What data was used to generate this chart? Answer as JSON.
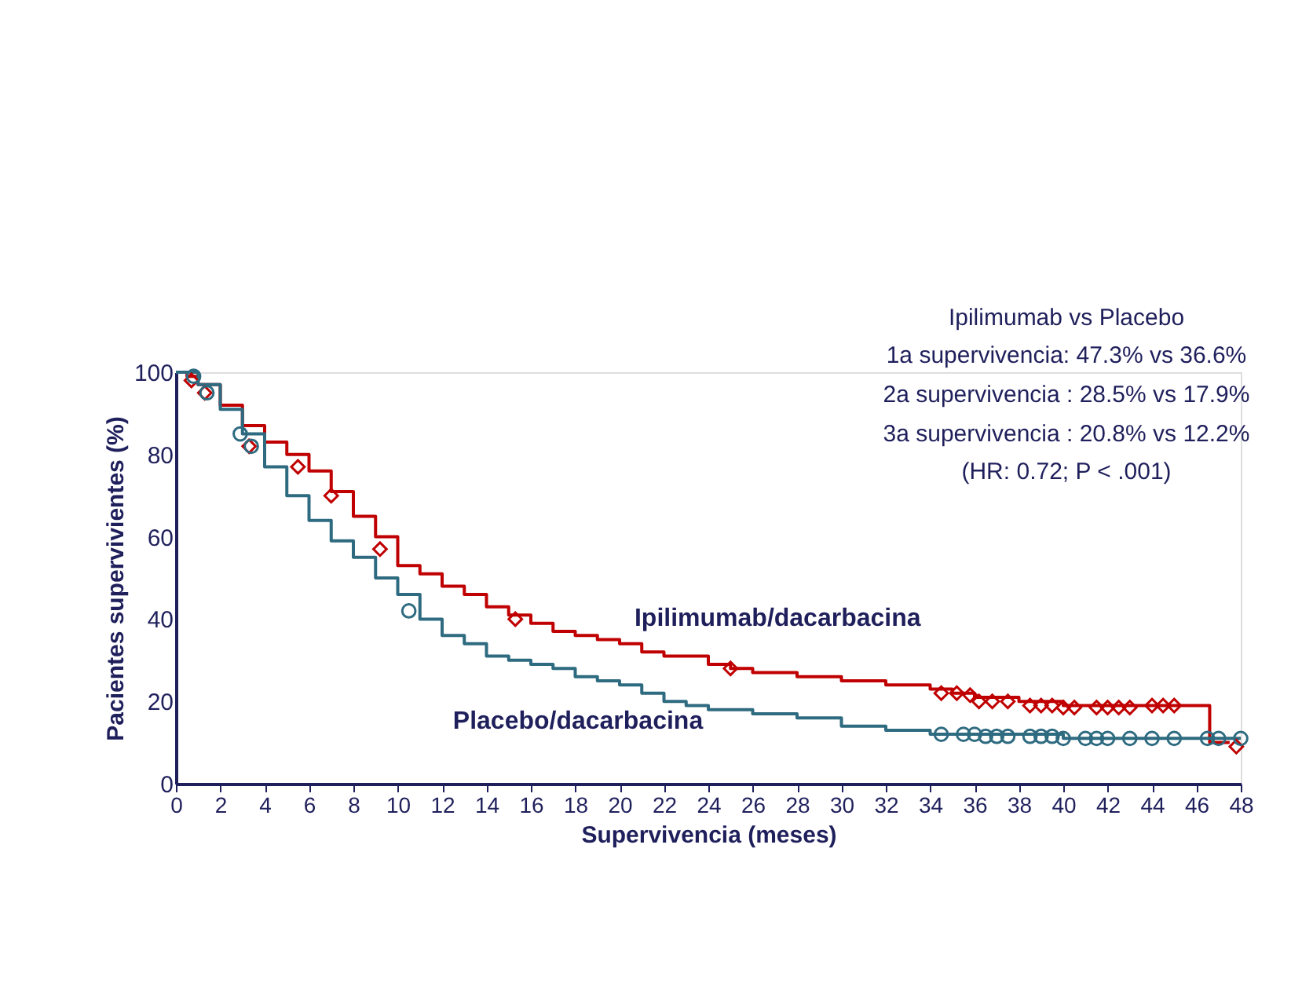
{
  "chart_data": {
    "type": "step",
    "xlabel": "Supervivencia (meses)",
    "ylabel": "Pacientes supervivientes (%)",
    "annotations": [
      "Ipilimumab vs Placebo",
      "1a supervivencia:  47.3% vs 36.6%",
      "2a supervivencia : 28.5% vs 17.9%",
      "3a supervivencia : 20.8% vs 12.2%",
      "(HR: 0.72; P < .001)"
    ],
    "xlim": [
      0,
      48
    ],
    "xticks": [
      0,
      2,
      4,
      6,
      8,
      10,
      12,
      14,
      16,
      18,
      20,
      22,
      24,
      26,
      28,
      30,
      32,
      34,
      36,
      38,
      40,
      42,
      44,
      46,
      48
    ],
    "ylim": [
      0,
      100
    ],
    "yticks": [
      0,
      20,
      40,
      60,
      80,
      100
    ],
    "grid": false,
    "legend": false,
    "series": [
      {
        "name": "Ipilimumab/dacarbacina",
        "color": "#c00000",
        "x": [
          0,
          0.5,
          1,
          2,
          3,
          4,
          5,
          6,
          7,
          8,
          9,
          10,
          11,
          12,
          13,
          14,
          15,
          16,
          17,
          18,
          19,
          20,
          21,
          22,
          24,
          25,
          26,
          28,
          30,
          32,
          34,
          35,
          36,
          38,
          40,
          46.6,
          47.5
        ],
        "values": [
          100,
          99,
          97,
          92,
          87,
          83,
          80,
          76,
          71,
          65,
          60,
          53,
          51,
          48,
          46,
          43,
          41,
          39,
          37,
          36,
          35,
          34,
          32,
          31,
          29,
          28,
          27,
          26,
          25,
          24,
          23,
          22,
          21,
          20,
          19,
          10,
          10
        ]
      },
      {
        "name": "Placebo/dacarbacina",
        "color": "#2e6b80",
        "x": [
          0,
          1,
          2,
          3,
          4,
          5,
          6,
          7,
          8,
          9,
          10,
          11,
          12,
          13,
          14,
          15,
          16,
          17,
          18,
          19,
          20,
          21,
          22,
          23,
          24,
          26,
          28,
          30,
          32,
          34,
          40,
          48
        ],
        "values": [
          100,
          97,
          91,
          85,
          77,
          70,
          64,
          59,
          55,
          50,
          46,
          40,
          36,
          34,
          31,
          30,
          29,
          28,
          26,
          25,
          24,
          22,
          20,
          19,
          18,
          17,
          16,
          14,
          13,
          12,
          11,
          11
        ]
      },
      {
        "type": "scatter",
        "marker": "diamond",
        "color": "#c00000",
        "x": [
          0.7,
          1.3,
          3.3,
          5.5,
          7,
          9.2,
          15.3,
          25,
          34.5,
          35.2,
          35.8,
          36.2,
          36.8,
          37.5,
          38.5,
          39,
          39.5,
          40,
          40.5,
          41.5,
          42,
          42.5,
          43,
          44,
          44.5,
          45,
          47.8
        ],
        "values": [
          98,
          95,
          82,
          77,
          70,
          57,
          40,
          28,
          22,
          22,
          21.5,
          20,
          20,
          20,
          19,
          19,
          19,
          18.5,
          18.5,
          18.5,
          18.5,
          18.5,
          18.5,
          19,
          19,
          19,
          9
        ]
      },
      {
        "type": "scatter",
        "marker": "circle",
        "color": "#2e6b80",
        "x": [
          0.8,
          1.4,
          2.9,
          3.4,
          10.5,
          34.5,
          35.5,
          36,
          36.5,
          37,
          37.5,
          38.5,
          39,
          39.5,
          40,
          41,
          41.5,
          42,
          43,
          44,
          45,
          46.5,
          47,
          48
        ],
        "values": [
          99,
          95,
          85,
          82,
          42,
          12,
          12,
          12,
          11.5,
          11.5,
          11.5,
          11.5,
          11.5,
          11.5,
          11,
          11,
          11,
          11,
          11,
          11,
          11,
          11,
          11,
          11
        ]
      }
    ]
  }
}
